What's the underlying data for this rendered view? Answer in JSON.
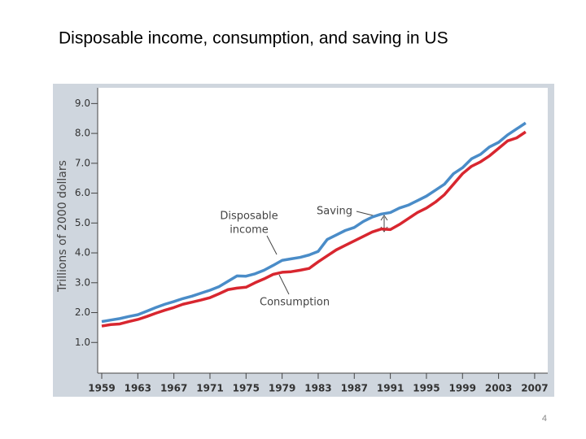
{
  "page_title": "Disposable income, consumption, and saving in US",
  "page_number": "4",
  "chart_data": {
    "type": "line",
    "y_label": "Trillions of 2000 dollars",
    "annotations": [
      "Disposable",
      "income",
      "Saving",
      "Consumption"
    ],
    "x": [
      1959,
      1960,
      1961,
      1962,
      1963,
      1964,
      1965,
      1966,
      1967,
      1968,
      1969,
      1970,
      1971,
      1972,
      1973,
      1974,
      1975,
      1976,
      1977,
      1978,
      1979,
      1980,
      1981,
      1982,
      1983,
      1984,
      1985,
      1986,
      1987,
      1988,
      1989,
      1990,
      1991,
      1992,
      1993,
      1994,
      1995,
      1996,
      1997,
      1998,
      1999,
      2000,
      2001,
      2002,
      2003,
      2004,
      2005,
      2006
    ],
    "series": [
      {
        "color": "#4a8cc8",
        "values": [
          1.7,
          1.75,
          1.8,
          1.87,
          1.93,
          2.05,
          2.17,
          2.28,
          2.37,
          2.47,
          2.55,
          2.65,
          2.75,
          2.87,
          3.05,
          3.23,
          3.22,
          3.3,
          3.42,
          3.58,
          3.75,
          3.8,
          3.85,
          3.93,
          4.05,
          4.45,
          4.6,
          4.75,
          4.85,
          5.05,
          5.2,
          5.3,
          5.35,
          5.5,
          5.6,
          5.75,
          5.9,
          6.1,
          6.3,
          6.65,
          6.85,
          7.15,
          7.3,
          7.55,
          7.7,
          7.95,
          8.15,
          8.35
        ]
      },
      {
        "color": "#d8262f",
        "values": [
          1.55,
          1.6,
          1.62,
          1.7,
          1.77,
          1.87,
          1.98,
          2.08,
          2.17,
          2.28,
          2.35,
          2.42,
          2.5,
          2.63,
          2.77,
          2.82,
          2.85,
          3.0,
          3.13,
          3.28,
          3.35,
          3.37,
          3.42,
          3.48,
          3.7,
          3.9,
          4.1,
          4.25,
          4.4,
          4.55,
          4.7,
          4.8,
          4.78,
          4.95,
          5.15,
          5.35,
          5.5,
          5.7,
          5.95,
          6.3,
          6.65,
          6.9,
          7.05,
          7.25,
          7.5,
          7.75,
          7.85,
          8.05
        ]
      }
    ],
    "xlim": [
      1959,
      2008
    ],
    "xticks": [
      1959,
      1963,
      1967,
      1971,
      1975,
      1979,
      1983,
      1987,
      1991,
      1995,
      1999,
      2003,
      2007
    ],
    "ylim": [
      0,
      9.5
    ],
    "yticks": [
      {
        "value": 1,
        "label": "1.0"
      },
      {
        "value": 2,
        "label": "2.0"
      },
      {
        "value": 3,
        "label": "3.0"
      },
      {
        "value": 4,
        "label": "4.0"
      },
      {
        "value": 5,
        "label": "5.0"
      },
      {
        "value": 6,
        "label": "6.0"
      },
      {
        "value": 7,
        "label": "7.0"
      },
      {
        "value": 8,
        "label": "8.0"
      },
      {
        "value": 9,
        "label": "9.0"
      }
    ]
  }
}
